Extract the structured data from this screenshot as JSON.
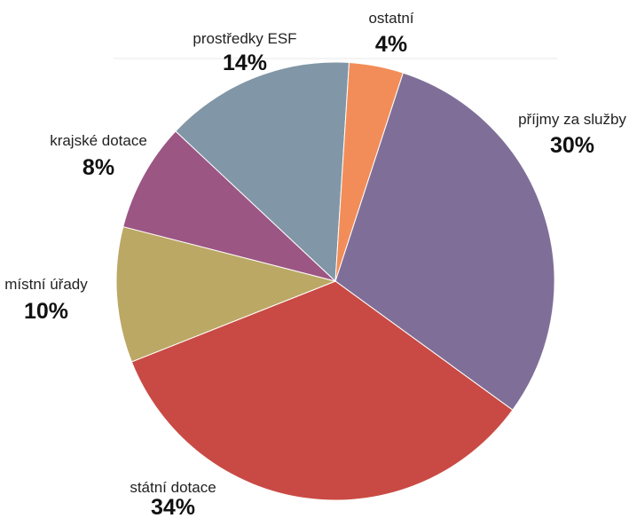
{
  "chart_data": {
    "type": "pie",
    "title": "",
    "unit": "%",
    "slices": [
      {
        "label": "příjmy za služby",
        "value": 30,
        "value_label": "30%",
        "color": "#7f6f98"
      },
      {
        "label": "státní dotace",
        "value": 34,
        "value_label": "34%",
        "color": "#c94a44"
      },
      {
        "label": "místní úřady",
        "value": 10,
        "value_label": "10%",
        "color": "#bba864"
      },
      {
        "label": "krajské dotace",
        "value": 8,
        "value_label": "8%",
        "color": "#9c5683"
      },
      {
        "label": "prostředky ESF",
        "value": 14,
        "value_label": "14%",
        "color": "#8196a6"
      },
      {
        "label": "ostatní",
        "value": 4,
        "value_label": "4%",
        "color": "#f28d59"
      }
    ]
  }
}
